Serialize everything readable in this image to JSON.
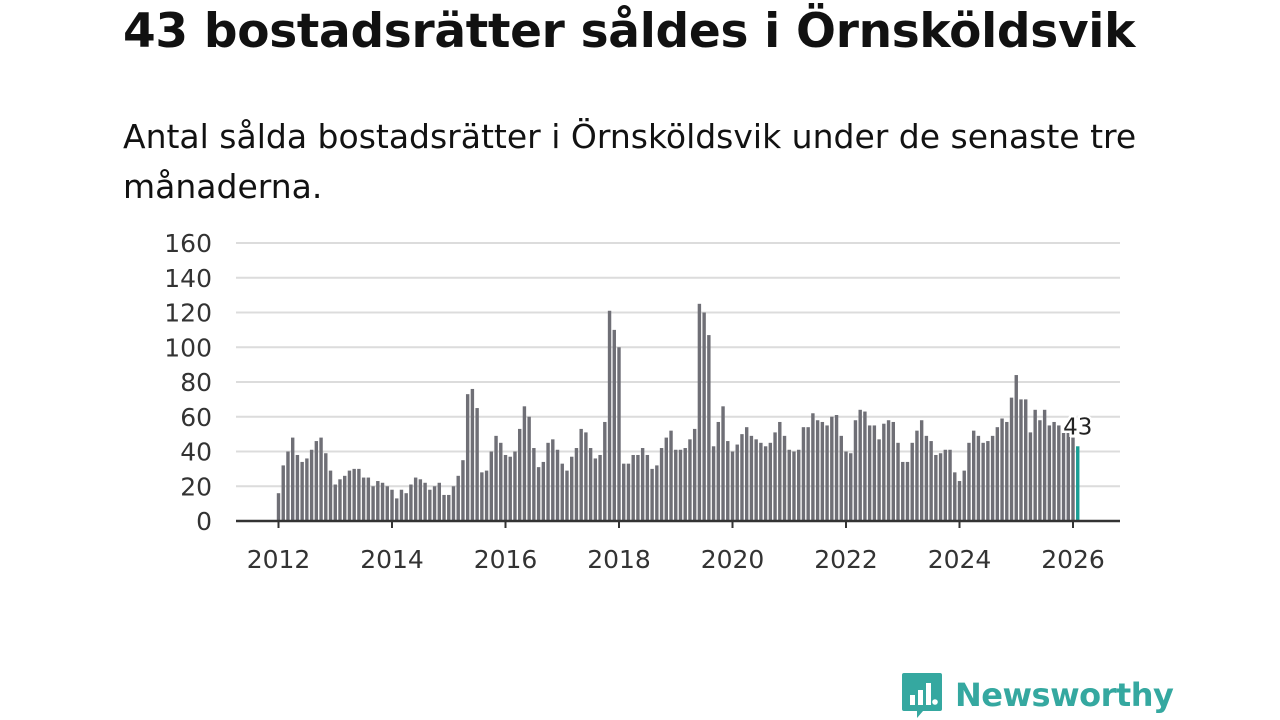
{
  "header": {
    "title": "43 bostadsrätter såldes i Örnsköldsvik",
    "subtitle": "Antal sålda bostadsrätter i Örnsköldsvik under de senaste tre månaderna."
  },
  "brand": {
    "name": "Newsworthy",
    "icon": "newsworthy-logo-icon",
    "color": "#35a8a0"
  },
  "colors": {
    "bar": "#6f6f76",
    "highlight": "#1a9e95",
    "grid": "#dcdcdc",
    "axis": "#333333"
  },
  "chart_data": {
    "type": "bar",
    "title": "43 bostadsrätter såldes i Örnsköldsvik",
    "xlabel": "",
    "ylabel": "",
    "ylim": [
      0,
      160
    ],
    "yticks": [
      "0",
      "20",
      "40",
      "60",
      "80",
      "100",
      "120",
      "140",
      "160"
    ],
    "xticks": [
      "2012",
      "2014",
      "2016",
      "2018",
      "2020",
      "2022",
      "2024",
      "2026"
    ],
    "grid": true,
    "start": "2012-01",
    "series": [
      {
        "name": "Sålda bostadsrätter",
        "values": [
          16,
          32,
          40,
          48,
          38,
          34,
          36,
          41,
          46,
          48,
          39,
          29,
          21,
          24,
          26,
          29,
          30,
          30,
          25,
          25,
          20,
          23,
          22,
          20,
          18,
          13,
          18,
          16,
          21,
          25,
          24,
          22,
          18,
          20,
          22,
          15,
          15,
          20,
          26,
          35,
          73,
          76,
          65,
          28,
          29,
          40,
          49,
          45,
          38,
          37,
          40,
          53,
          66,
          60,
          42,
          31,
          34,
          45,
          47,
          41,
          33,
          29,
          37,
          42,
          53,
          51,
          42,
          36,
          38,
          57,
          121,
          110,
          100,
          33,
          33,
          38,
          38,
          42,
          38,
          30,
          32,
          42,
          48,
          52,
          41,
          41,
          42,
          47,
          53,
          125,
          120,
          107,
          43,
          57,
          66,
          46,
          40,
          44,
          50,
          54,
          49,
          47,
          45,
          43,
          45,
          51,
          57,
          49,
          41,
          40,
          41,
          54,
          54,
          62,
          58,
          57,
          55,
          60,
          61,
          49,
          40,
          39,
          58,
          64,
          63,
          55,
          55,
          47,
          56,
          58,
          57,
          45,
          34,
          34,
          45,
          52,
          58,
          49,
          46,
          38,
          39,
          41,
          41,
          28,
          23,
          29,
          45,
          52,
          49,
          45,
          46,
          49,
          54,
          59,
          57,
          71,
          84,
          70,
          70,
          51,
          64,
          58,
          64,
          55,
          57,
          55,
          52,
          51,
          48,
          43
        ]
      }
    ],
    "highlight": {
      "label": "43",
      "value": 43,
      "period": "last"
    }
  }
}
